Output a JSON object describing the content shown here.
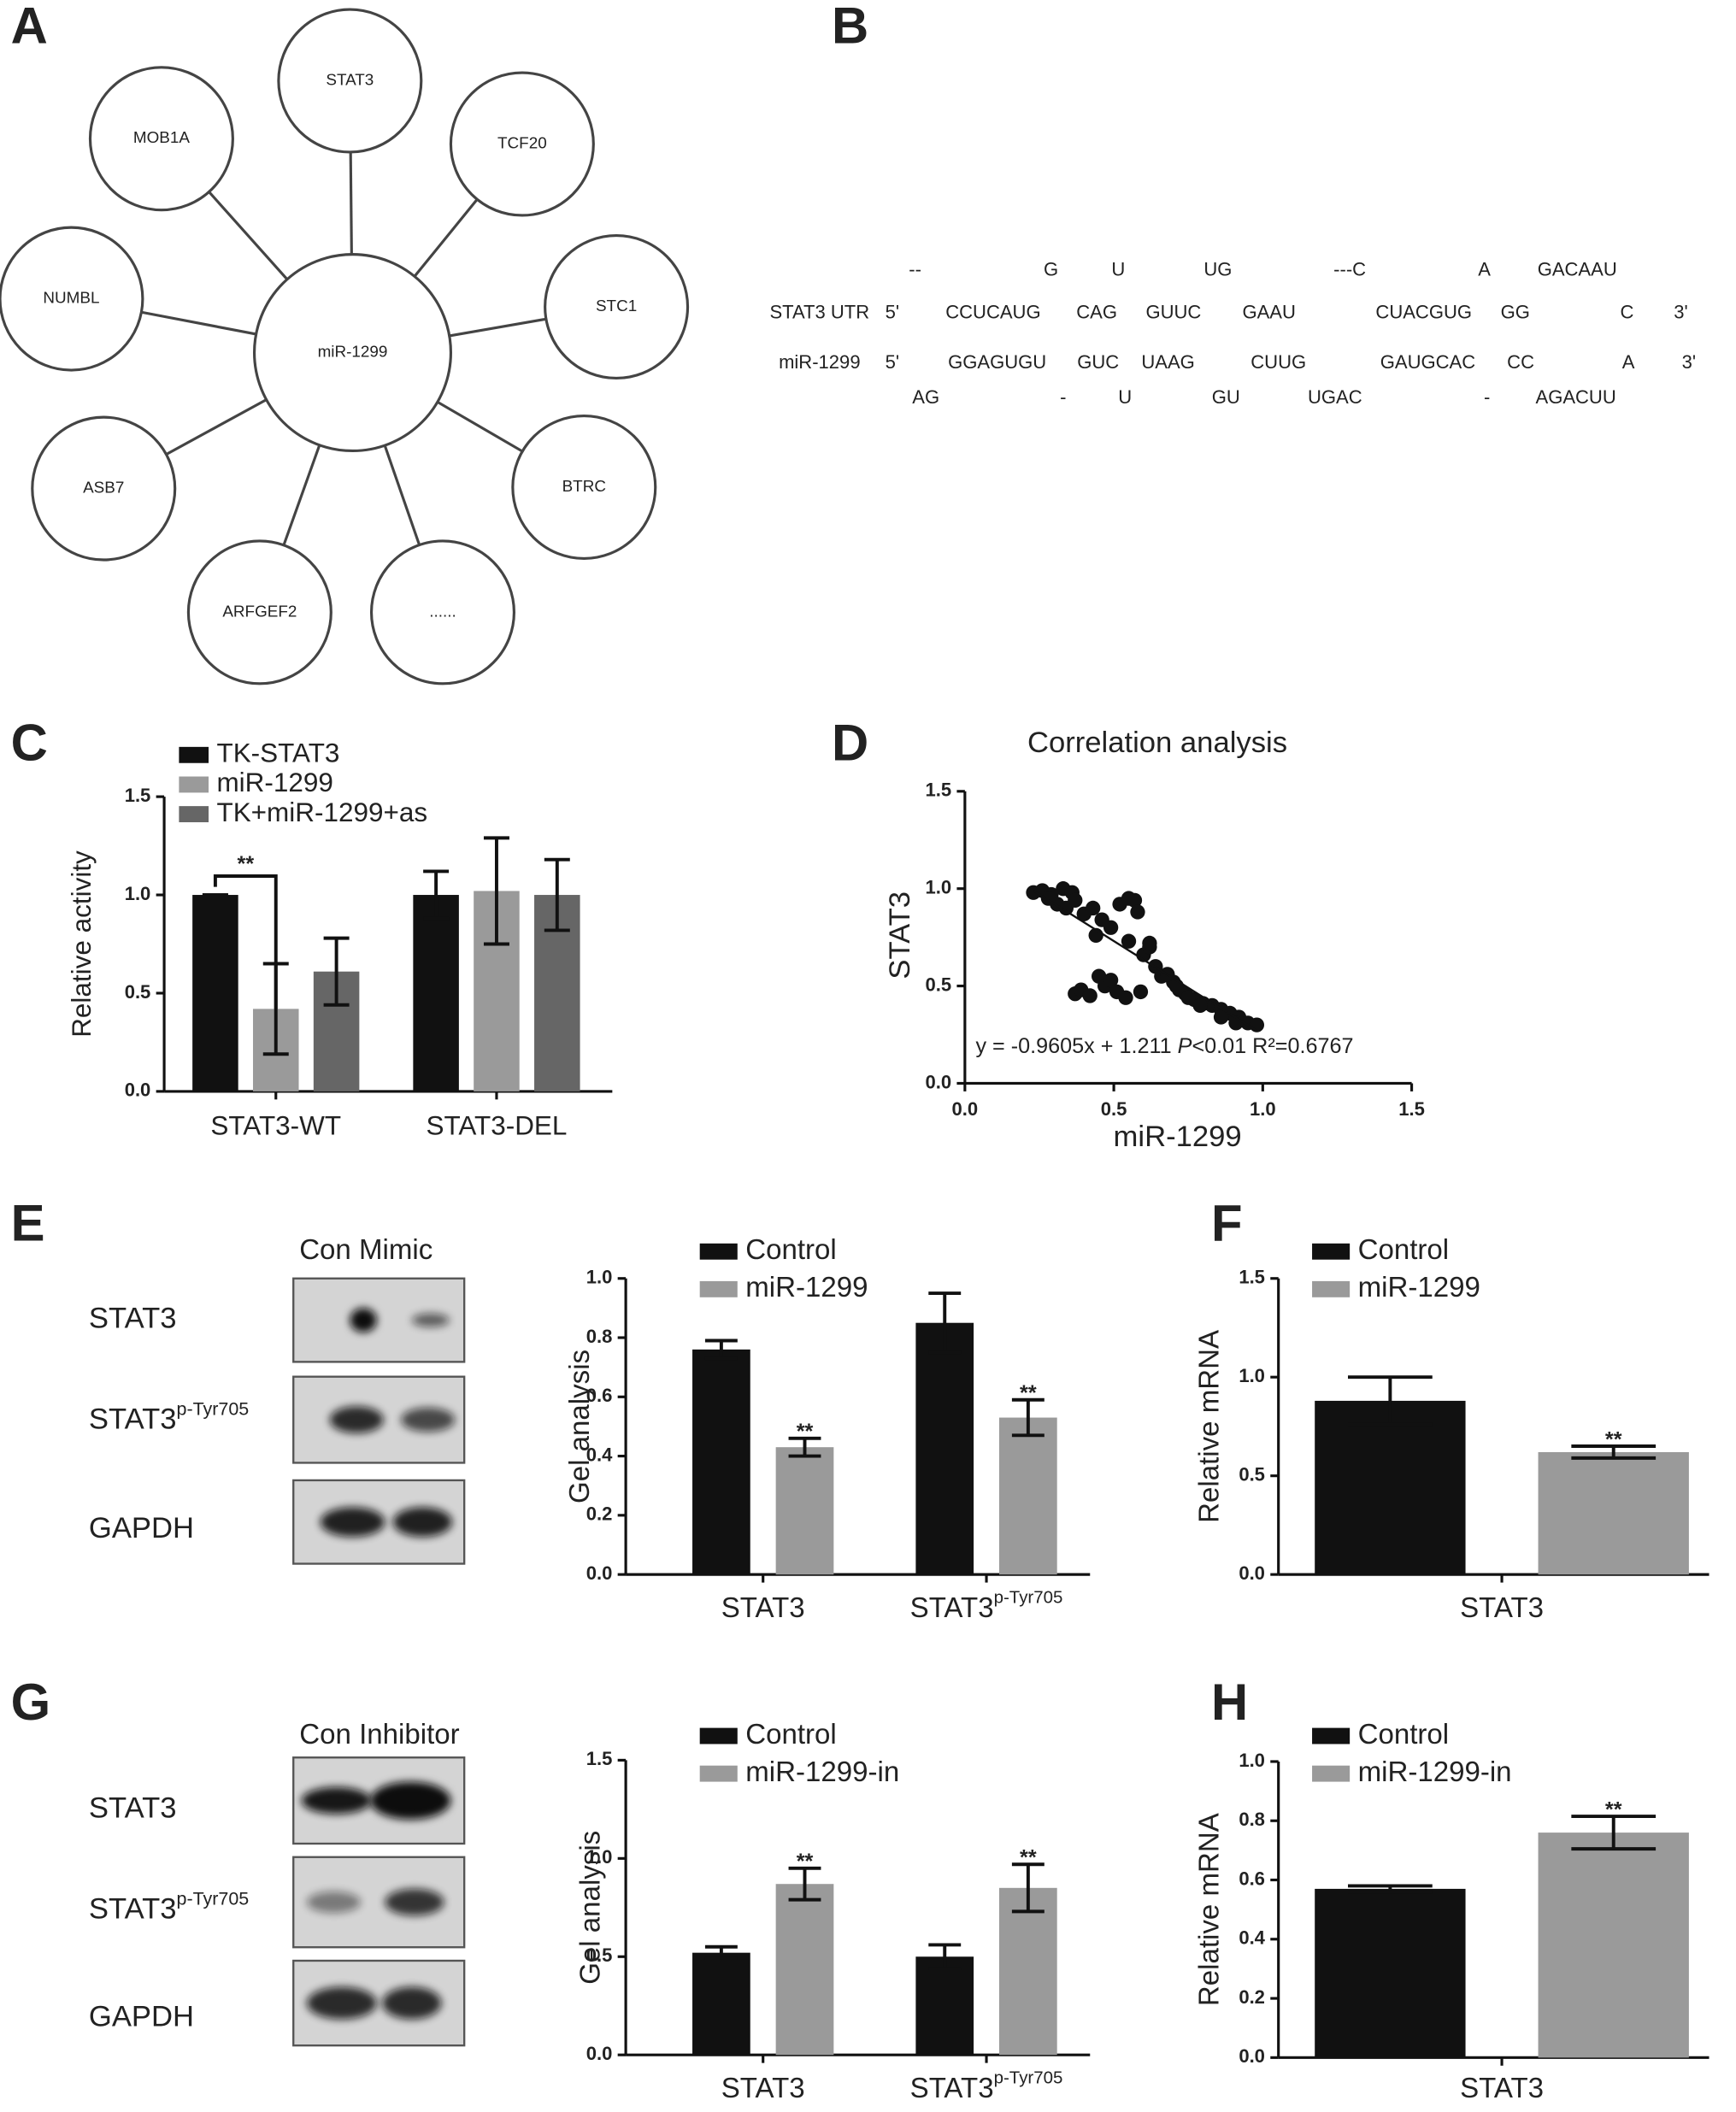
{
  "panels": [
    "A",
    "B",
    "C",
    "D",
    "E",
    "F",
    "G",
    "H"
  ],
  "network": {
    "center": "miR-1299",
    "nodes": [
      "STAT3",
      "TCF20",
      "STC1",
      "BTRC",
      "......",
      "ARFGEF2",
      "ASB7",
      "NUMBL",
      "MOB1A"
    ]
  },
  "alignment": {
    "rows": [
      [
        "--",
        "G",
        "U",
        "UG",
        "---C",
        "A",
        "GACAAU"
      ],
      [
        "STAT3 UTR",
        "5'",
        "CCUCAUG",
        "CAG",
        "GUUC",
        "GAAU",
        "CUACGUG",
        "GG",
        "C",
        "3'"
      ],
      [
        "miR-1299",
        "5'",
        "GGAGUGU",
        "GUC",
        "UAAG",
        "CUUG",
        "GAUGCAC",
        "CC",
        "A",
        "3'"
      ],
      [
        "AG",
        "-",
        "U",
        "GU",
        "UGAC",
        "-",
        "AGACUU"
      ]
    ]
  },
  "blots": [
    {
      "header": "Con Mimic",
      "rows": [
        {
          "text": "STAT3"
        },
        {
          "text": "STAT3",
          "sup": "p-Tyr705"
        },
        {
          "text": "GAPDH"
        }
      ]
    },
    {
      "header": "Con Inhibitor",
      "rows": [
        {
          "text": "STAT3"
        },
        {
          "text": "STAT3",
          "sup": "p-Tyr705"
        },
        {
          "text": "GAPDH"
        }
      ]
    }
  ],
  "chart_data": [
    {
      "type": "bar",
      "ylabel": "Relative activity",
      "categories": [
        {
          "text": "STAT3-WT"
        },
        {
          "text": "STAT3-DEL"
        }
      ],
      "series": [
        {
          "name": "TK-STAT3",
          "color": "#111111",
          "values": [
            1.0,
            1.0
          ],
          "errors": [
            0,
            0.12
          ]
        },
        {
          "name": "miR-1299",
          "color": "#9a9a9a",
          "values": [
            0.42,
            1.02
          ],
          "errors": [
            0.23,
            0.27
          ]
        },
        {
          "name": "TK+miR-1299+as",
          "color": "#666666",
          "values": [
            0.61,
            1.0
          ],
          "errors": [
            0.17,
            0.18
          ]
        }
      ],
      "bracket_label": "**",
      "ylim": [
        0,
        1.5
      ],
      "yticks": [
        {
          "value": 0,
          "label": "0.0"
        },
        {
          "value": 0.5,
          "label": "0.5"
        },
        {
          "value": 1,
          "label": "1.0"
        },
        {
          "value": 1.5,
          "label": "1.5"
        }
      ]
    },
    {
      "type": "scatter",
      "title": "Correlation analysis",
      "xlabel": "miR-1299",
      "ylabel": "STAT3",
      "x": [
        0.23,
        0.26,
        0.29,
        0.33,
        0.36,
        0.31,
        0.34,
        0.37,
        0.4,
        0.43,
        0.46,
        0.49,
        0.44,
        0.52,
        0.55,
        0.57,
        0.58,
        0.55,
        0.6,
        0.62,
        0.64,
        0.66,
        0.7,
        0.72,
        0.74,
        0.77,
        0.8,
        0.83,
        0.86,
        0.89,
        0.92,
        0.95,
        0.98,
        0.37,
        0.39,
        0.42,
        0.45,
        0.47,
        0.49,
        0.51,
        0.54,
        0.59,
        0.62,
        0.68,
        0.71,
        0.75,
        0.79,
        0.86,
        0.91,
        0.28
      ],
      "y": [
        0.98,
        0.99,
        0.97,
        1.0,
        0.98,
        0.92,
        0.9,
        0.94,
        0.87,
        0.9,
        0.84,
        0.8,
        0.76,
        0.92,
        0.95,
        0.94,
        0.88,
        0.73,
        0.66,
        0.7,
        0.6,
        0.55,
        0.52,
        0.48,
        0.46,
        0.43,
        0.41,
        0.4,
        0.38,
        0.36,
        0.34,
        0.31,
        0.3,
        0.46,
        0.48,
        0.45,
        0.55,
        0.5,
        0.53,
        0.47,
        0.44,
        0.47,
        0.72,
        0.56,
        0.5,
        0.44,
        0.4,
        0.34,
        0.31,
        0.95
      ],
      "fit": {
        "slope": -0.9605,
        "intercept": 1.211
      },
      "annotation": [
        "y = -0.9605x + 1.211 ",
        "P",
        "<0.01 R²=0.6767"
      ],
      "xlim": [
        0,
        1.5
      ],
      "ylim": [
        0,
        1.5
      ],
      "xticks": [
        {
          "value": 0,
          "label": "0.0"
        },
        {
          "value": 0.5,
          "label": "0.5"
        },
        {
          "value": 1,
          "label": "1.0"
        },
        {
          "value": 1.5,
          "label": "1.5"
        }
      ],
      "yticks": [
        {
          "value": 0,
          "label": "0.0"
        },
        {
          "value": 0.5,
          "label": "0.5"
        },
        {
          "value": 1,
          "label": "1.0"
        },
        {
          "value": 1.5,
          "label": "1.5"
        }
      ]
    },
    {
      "type": "bar",
      "ylabel": "Gel analysis",
      "categories": [
        {
          "text": "STAT3"
        },
        {
          "text": "STAT3",
          "sup": "p-Tyr705"
        }
      ],
      "series": [
        {
          "name": "Control",
          "color": "#111111",
          "values": [
            0.76,
            0.85
          ],
          "errors": [
            0.03,
            0.1
          ]
        },
        {
          "name": "miR-1299",
          "color": "#9a9a9a",
          "values": [
            0.43,
            0.53
          ],
          "errors": [
            0.03,
            0.06
          ],
          "marks": [
            "**",
            "**"
          ]
        }
      ],
      "ylim": [
        0,
        1.0
      ],
      "yticks": [
        {
          "value": 0,
          "label": "0.0"
        },
        0.2,
        0.4,
        0.6,
        0.8,
        {
          "value": 1,
          "label": "1.0"
        }
      ]
    },
    {
      "type": "bar",
      "ylabel": "Relative mRNA",
      "categories": [
        {
          "text": "STAT3"
        }
      ],
      "series": [
        {
          "name": "Control",
          "color": "#111111",
          "values": [
            0.88
          ],
          "errors": [
            0.12
          ]
        },
        {
          "name": "miR-1299",
          "color": "#9a9a9a",
          "values": [
            0.62
          ],
          "errors": [
            0.03
          ],
          "marks": [
            "**"
          ]
        }
      ],
      "ylim": [
        0,
        1.5
      ],
      "yticks": [
        {
          "value": 0,
          "label": "0.0"
        },
        {
          "value": 0.5,
          "label": "0.5"
        },
        {
          "value": 1,
          "label": "1.0"
        },
        {
          "value": 1.5,
          "label": "1.5"
        }
      ]
    },
    {
      "type": "bar",
      "ylabel": "Gel analysis",
      "categories": [
        {
          "text": "STAT3"
        },
        {
          "text": "STAT3",
          "sup": "p-Tyr705"
        }
      ],
      "series": [
        {
          "name": "Control",
          "color": "#111111",
          "values": [
            0.52,
            0.5
          ],
          "errors": [
            0.03,
            0.06
          ]
        },
        {
          "name": "miR-1299-in",
          "color": "#9a9a9a",
          "values": [
            0.87,
            0.85
          ],
          "errors": [
            0.08,
            0.12
          ],
          "marks": [
            "**",
            "**"
          ]
        }
      ],
      "ylim": [
        0,
        1.5
      ],
      "yticks": [
        {
          "value": 0,
          "label": "0.0"
        },
        {
          "value": 0.5,
          "label": "0.5"
        },
        {
          "value": 1,
          "label": "1.0"
        },
        {
          "value": 1.5,
          "label": "1.5"
        }
      ]
    },
    {
      "type": "bar",
      "ylabel": "Relative mRNA",
      "categories": [
        {
          "text": "STAT3"
        }
      ],
      "series": [
        {
          "name": "Control",
          "color": "#111111",
          "values": [
            0.57
          ],
          "errors": [
            0.01
          ]
        },
        {
          "name": "miR-1299-in",
          "color": "#9a9a9a",
          "values": [
            0.76
          ],
          "errors": [
            0.055
          ],
          "marks": [
            "**"
          ]
        }
      ],
      "ylim": [
        0,
        1.0
      ],
      "yticks": [
        {
          "value": 0,
          "label": "0.0"
        },
        0.2,
        0.4,
        0.6,
        0.8,
        {
          "value": 1,
          "label": "1.0"
        }
      ]
    }
  ]
}
